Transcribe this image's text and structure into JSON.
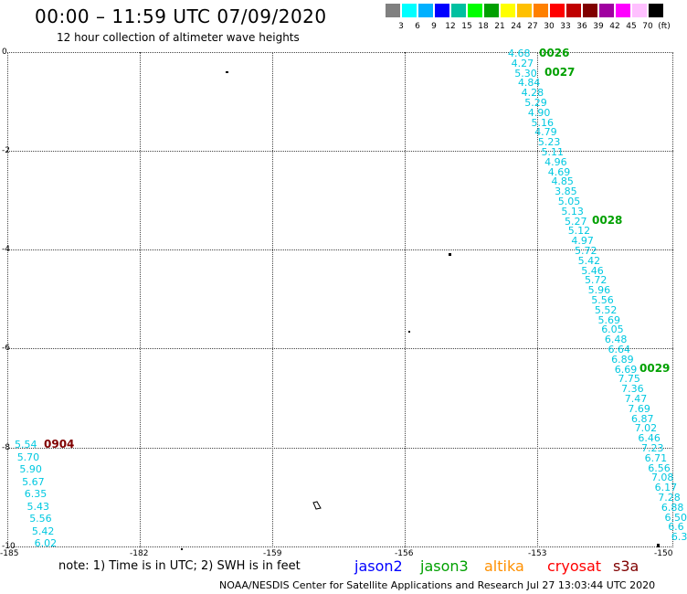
{
  "header": {
    "title": "00:00 – 11:59 UTC 07/09/2020",
    "subtitle": "12 hour collection of altimeter wave heights"
  },
  "scale": {
    "colors": [
      "#808080",
      "#00ffff",
      "#00b0ff",
      "#0000ff",
      "#00c0a0",
      "#00ff00",
      "#00a000",
      "#ffff00",
      "#ffc000",
      "#ff8000",
      "#ff0000",
      "#c00000",
      "#800000",
      "#a000a0",
      "#ff00ff",
      "#ffc0ff",
      "#000000"
    ],
    "labels": [
      "3",
      "6",
      "9",
      "12",
      "15",
      "18",
      "21",
      "24",
      "27",
      "30",
      "33",
      "36",
      "39",
      "42",
      "45",
      "70",
      "(ft)"
    ]
  },
  "axes": {
    "y_labels": [
      "0",
      "-2",
      "-4",
      "-6",
      "-8",
      "-10"
    ],
    "x_labels": [
      "-185",
      "-182",
      "-159",
      "-156",
      "-153",
      "-150"
    ]
  },
  "east_track": [
    "4.68",
    "4.27",
    "5.30",
    "4.84",
    "4.28",
    "5.29",
    "4.90",
    "5.16",
    "4.79",
    "5.23",
    "5.11",
    "4.96",
    "4.69",
    "4.85",
    "3.85",
    "5.05",
    "5.13",
    "5.27",
    "5.12",
    "4.97",
    "5.72",
    "5.42",
    "5.46",
    "5.72",
    "5.96",
    "5.56",
    "5.52",
    "5.69",
    "6.05",
    "6.48",
    "6.64",
    "6.89",
    "6.69",
    "7.75",
    "7.36",
    "7.47",
    "7.69",
    "6.87",
    "7.02",
    "6.46",
    "7.23",
    "6.71",
    "6.56",
    "7.08",
    "6.17",
    "7.28",
    "6.88",
    "6.50",
    "6.6",
    "6.3"
  ],
  "west_track": [
    "5.54",
    "5.70",
    "5.90",
    "5.67",
    "6.35",
    "5.43",
    "5.56",
    "5.42",
    "6.02"
  ],
  "times": {
    "t1": "0026",
    "t2": "0027",
    "t3": "0028",
    "t4": "0029",
    "t5": "0904"
  },
  "note": "note: 1) Time is in UTC; 2) SWH is in feet",
  "satellites": [
    {
      "name": "jason2",
      "color": "#0000ff"
    },
    {
      "name": "jason3",
      "color": "#00a000"
    },
    {
      "name": "altika",
      "color": "#ff9000"
    },
    {
      "name": "cryosat",
      "color": "#ff0000"
    },
    {
      "name": "s3a",
      "color": "#800000"
    }
  ],
  "footer": "NOAA/NESDIS Center for Satellite Applications and Research     Jul 27 13:03:44 UTC 2020"
}
